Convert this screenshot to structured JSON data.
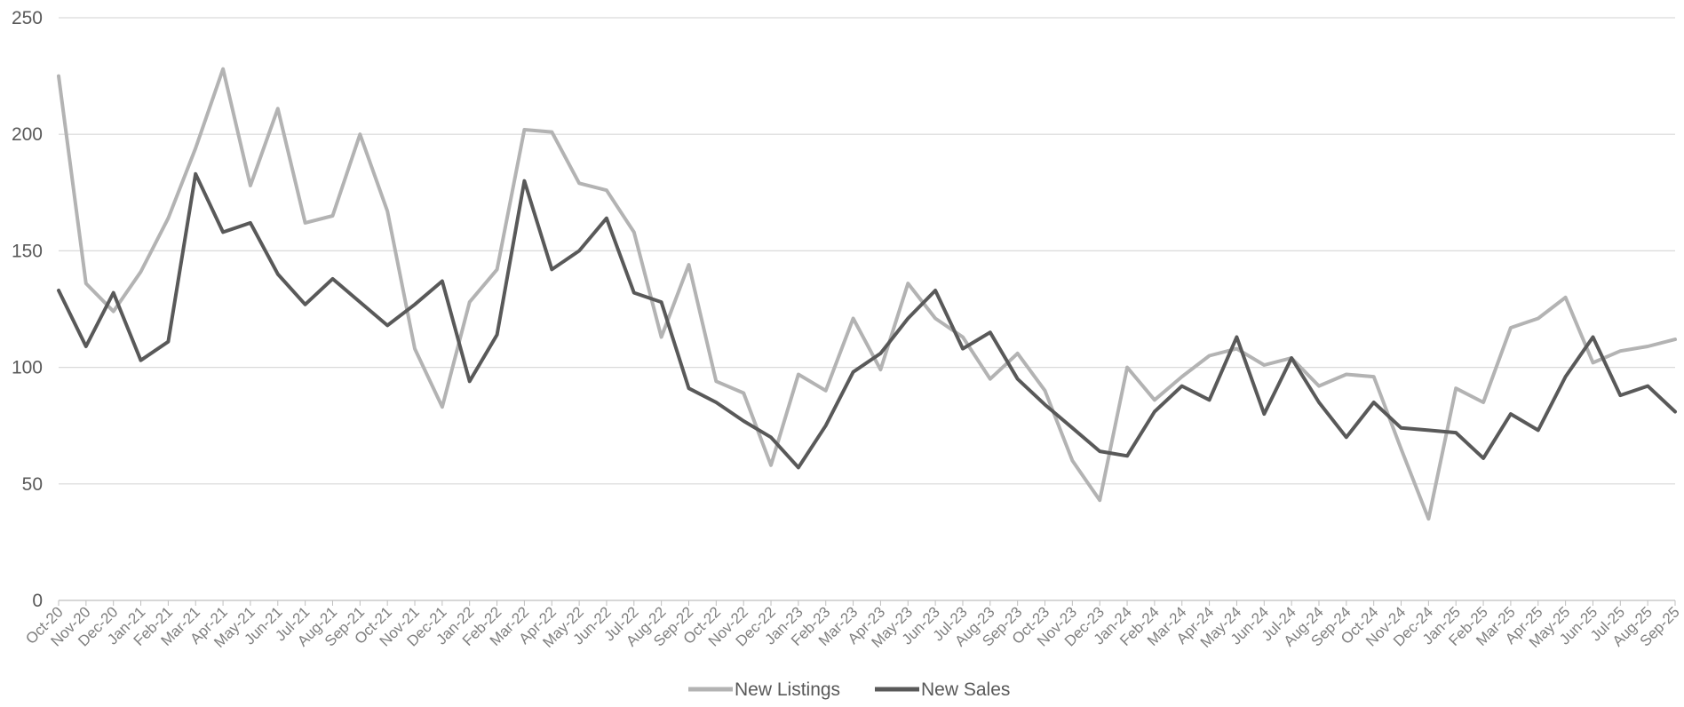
{
  "chart_data": {
    "type": "line",
    "title": "",
    "xlabel": "",
    "ylabel": "",
    "ylim": [
      0,
      250
    ],
    "yticks": [
      0,
      50,
      100,
      150,
      200,
      250
    ],
    "grid": true,
    "legend_position": "bottom",
    "categories": [
      "Oct-20",
      "Nov-20",
      "Dec-20",
      "Jan-21",
      "Feb-21",
      "Mar-21",
      "Apr-21",
      "May-21",
      "Jun-21",
      "Jul-21",
      "Aug-21",
      "Sep-21",
      "Oct-21",
      "Nov-21",
      "Dec-21",
      "Jan-22",
      "Feb-22",
      "Mar-22",
      "Apr-22",
      "May-22",
      "Jun-22",
      "Jul-22",
      "Aug-22",
      "Sep-22",
      "Oct-22",
      "Nov-22",
      "Dec-22",
      "Jan-23",
      "Feb-23",
      "Mar-23",
      "Apr-23",
      "May-23",
      "Jun-23",
      "Jul-23",
      "Aug-23",
      "Sep-23",
      "Oct-23",
      "Nov-23",
      "Dec-23",
      "Jan-24",
      "Feb-24",
      "Mar-24",
      "Apr-24",
      "May-24",
      "Jun-24",
      "Jul-24",
      "Aug-24",
      "Sep-24",
      "Oct-24",
      "Nov-24",
      "Dec-24",
      "Jan-25",
      "Feb-25",
      "Mar-25",
      "Apr-25",
      "May-25",
      "Jun-25",
      "Jul-25",
      "Aug-25",
      "Sep-25"
    ],
    "series": [
      {
        "name": "New Listings",
        "color": "#b3b3b3",
        "values": [
          225,
          136,
          124,
          141,
          164,
          194,
          228,
          178,
          211,
          162,
          165,
          200,
          167,
          108,
          83,
          128,
          142,
          202,
          201,
          179,
          176,
          158,
          113,
          144,
          94,
          89,
          58,
          97,
          90,
          121,
          99,
          136,
          121,
          113,
          95,
          106,
          90,
          60,
          43,
          100,
          86,
          96,
          105,
          108,
          101,
          104,
          92,
          97,
          96,
          65,
          35,
          91,
          85,
          117,
          121,
          130,
          102,
          107,
          109,
          112
        ]
      },
      {
        "name": "New Sales",
        "color": "#595959",
        "values": [
          133,
          109,
          132,
          103,
          111,
          183,
          158,
          162,
          140,
          127,
          138,
          128,
          118,
          127,
          137,
          94,
          114,
          180,
          142,
          150,
          164,
          132,
          128,
          91,
          85,
          77,
          70,
          57,
          75,
          98,
          106,
          121,
          133,
          108,
          115,
          95,
          84,
          74,
          64,
          62,
          81,
          92,
          86,
          113,
          80,
          104,
          85,
          70,
          85,
          74,
          73,
          72,
          61,
          80,
          73,
          96,
          113,
          88,
          92,
          81
        ]
      }
    ]
  }
}
